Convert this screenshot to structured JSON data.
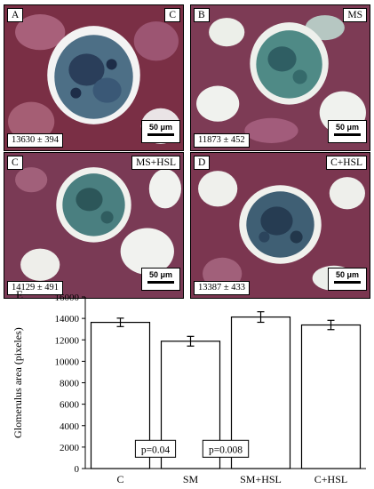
{
  "panels": [
    {
      "letter": "A",
      "group": "C",
      "value": "13630 ± 394",
      "scale": "50 μm"
    },
    {
      "letter": "B",
      "group": "MS",
      "value": "11873 ± 452",
      "scale": "50 μm"
    },
    {
      "letter": "C",
      "group": "MS+HSL",
      "value": "14129 ± 491",
      "scale": "50 μm"
    },
    {
      "letter": "D",
      "group": "C+HSL",
      "value": "13387 ± 433",
      "scale": "50 μm"
    }
  ],
  "chart_panel_label": "E",
  "chart_data": {
    "type": "bar",
    "categories": [
      "C",
      "SM",
      "SM+HSL",
      "C+HSL"
    ],
    "values": [
      13630,
      11873,
      14129,
      13387
    ],
    "errors": [
      394,
      452,
      491,
      433
    ],
    "title": "",
    "xlabel": "",
    "ylabel": "Glomerulus area (pixeles)",
    "ylim": [
      0,
      16000
    ],
    "yticks": [
      0,
      2000,
      4000,
      6000,
      8000,
      10000,
      12000,
      14000,
      16000
    ],
    "bar_fill": "#ffffff",
    "annotations": [
      {
        "text": "p=0.04",
        "between": [
          "C",
          "SM"
        ],
        "y": 1800
      },
      {
        "text": "p=0.008",
        "between": [
          "SM",
          "SM+HSL"
        ],
        "y": 1800
      }
    ],
    "grid": false
  },
  "colors": {
    "stain_red": "#8b3a52",
    "stain_green": "#4f8a86",
    "lumen": "#f1f2ef"
  }
}
